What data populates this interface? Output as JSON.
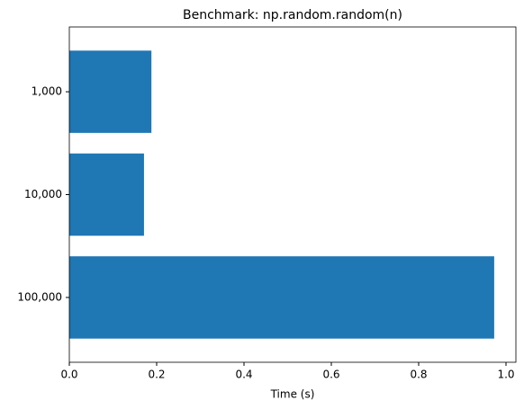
{
  "chart_data": {
    "type": "barh",
    "title": "Benchmark: np.random.random(n)",
    "x_label": "Time (s)",
    "categories": [
      "1,000",
      "10,000",
      "100,000"
    ],
    "values": [
      0.188,
      0.171,
      0.973
    ],
    "color": "#1f77b4",
    "xlim": [
      0,
      1.0227
    ],
    "xticks": [
      {
        "value": 0,
        "label": "0.0"
      },
      0.2,
      0.4,
      0.6,
      0.8,
      {
        "value": 1,
        "label": "1.0"
      }
    ]
  }
}
